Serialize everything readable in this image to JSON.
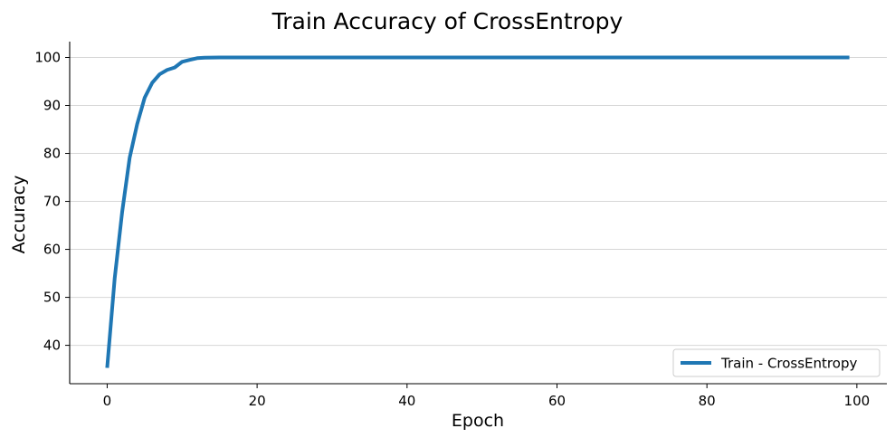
{
  "chart_data": {
    "type": "line",
    "title": "Train Accuracy of CrossEntropy",
    "xlabel": "Epoch",
    "ylabel": "Accuracy",
    "xlim": [
      -5,
      104
    ],
    "ylim": [
      32,
      103.3
    ],
    "xticks": [
      0,
      20,
      40,
      60,
      80,
      100
    ],
    "yticks": [
      40,
      50,
      60,
      70,
      80,
      90,
      100
    ],
    "grid": "horizontal",
    "legend_position": "lower-right",
    "series": [
      {
        "name": "Train - CrossEntropy",
        "color": "#1f77b4",
        "x": [
          0,
          1,
          2,
          3,
          4,
          5,
          6,
          7,
          8,
          9,
          10,
          11,
          12,
          13,
          14,
          15,
          16,
          17,
          18,
          19,
          20,
          21,
          22,
          23,
          24,
          25,
          26,
          27,
          28,
          29,
          30,
          31,
          32,
          33,
          34,
          35,
          36,
          37,
          38,
          39,
          40,
          41,
          42,
          43,
          44,
          45,
          46,
          47,
          48,
          49,
          50,
          51,
          52,
          53,
          54,
          55,
          56,
          57,
          58,
          59,
          60,
          61,
          62,
          63,
          64,
          65,
          66,
          67,
          68,
          69,
          70,
          71,
          72,
          73,
          74,
          75,
          76,
          77,
          78,
          79,
          80,
          81,
          82,
          83,
          84,
          85,
          86,
          87,
          88,
          89,
          90,
          91,
          92,
          93,
          94,
          95,
          96,
          97,
          98,
          99
        ],
        "y": [
          35.3,
          53.9,
          67.8,
          79.1,
          86.1,
          91.6,
          94.7,
          96.5,
          97.4,
          97.9,
          99.1,
          99.5,
          99.85,
          99.95,
          99.98,
          100,
          100,
          100,
          100,
          100,
          100,
          100,
          100,
          100,
          100,
          100,
          100,
          100,
          100,
          100,
          100,
          100,
          100,
          100,
          100,
          100,
          100,
          100,
          100,
          100,
          100,
          100,
          100,
          100,
          100,
          100,
          100,
          100,
          100,
          100,
          100,
          100,
          100,
          100,
          100,
          100,
          100,
          100,
          100,
          100,
          100,
          100,
          100,
          100,
          100,
          100,
          100,
          100,
          100,
          100,
          100,
          100,
          100,
          100,
          100,
          100,
          100,
          100,
          100,
          100,
          100,
          100,
          100,
          100,
          100,
          100,
          100,
          100,
          100,
          100,
          100,
          100,
          100,
          100,
          100,
          100,
          100,
          100,
          100,
          100
        ]
      }
    ]
  }
}
